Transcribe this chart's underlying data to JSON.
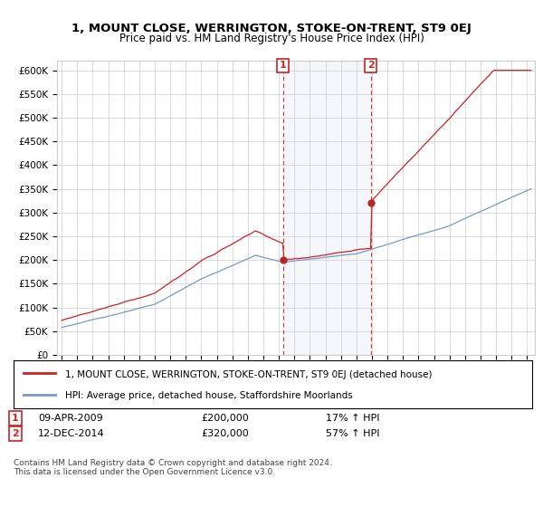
{
  "title": "1, MOUNT CLOSE, WERRINGTON, STOKE-ON-TRENT, ST9 0EJ",
  "subtitle": "Price paid vs. HM Land Registry's House Price Index (HPI)",
  "ylim": [
    0,
    620000
  ],
  "xlim_start": 1994.7,
  "xlim_end": 2025.5,
  "sale1_x": 2009.27,
  "sale1_price": 200000,
  "sale2_x": 2014.93,
  "sale2_price": 320000,
  "legend_line1": "1, MOUNT CLOSE, WERRINGTON, STOKE-ON-TRENT, ST9 0EJ (detached house)",
  "legend_line2": "HPI: Average price, detached house, Staffordshire Moorlands",
  "footer": "Contains HM Land Registry data © Crown copyright and database right 2024.\nThis data is licensed under the Open Government Licence v3.0.",
  "red_color": "#cc2222",
  "blue_color": "#7799cc",
  "highlight_color": "#ddeeff",
  "vline_color": "#cc2222",
  "grid_color": "#cccccc",
  "bg_color": "#ffffff",
  "ytick_vals": [
    0,
    50000,
    100000,
    150000,
    200000,
    250000,
    300000,
    350000,
    400000,
    450000,
    500000,
    550000,
    600000
  ],
  "ytick_labels": [
    "£0",
    "£50K",
    "£100K",
    "£150K",
    "£200K",
    "£250K",
    "£300K",
    "£350K",
    "£400K",
    "£450K",
    "£500K",
    "£550K",
    "£600K"
  ]
}
